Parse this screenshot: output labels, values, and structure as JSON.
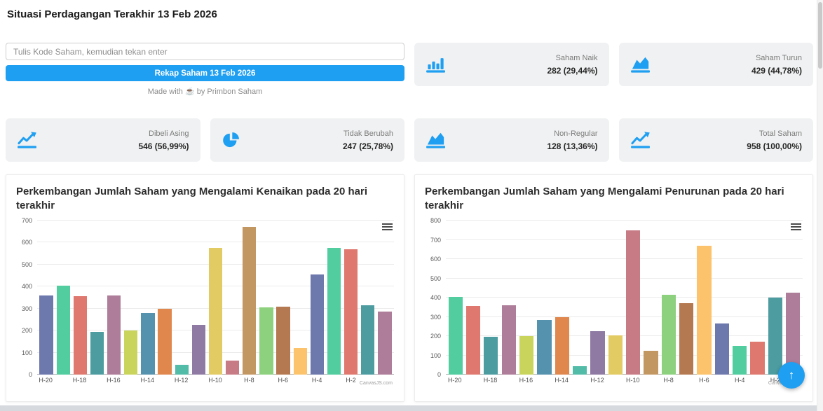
{
  "page": {
    "title": "Situasi Perdagangan Terakhir 13 Feb 2026"
  },
  "search": {
    "placeholder": "Tulis Kode Saham, kemudian tekan enter"
  },
  "actions": {
    "rekap_button": "Rekap Saham 13 Feb 2026"
  },
  "credit": {
    "prefix": "Made with",
    "emoji": "☕",
    "suffix": "by Primbon Saham"
  },
  "stats": [
    {
      "icon": "bar-chart",
      "label": "Saham Naik",
      "value": "282 (29,44%)"
    },
    {
      "icon": "area-chart",
      "label": "Saham Turun",
      "value": "429 (44,78%)"
    },
    {
      "icon": "line-chart",
      "label": "Dibeli Asing",
      "value": "546 (56,99%)"
    },
    {
      "icon": "pie-chart",
      "label": "Tidak Berubah",
      "value": "247 (25,78%)"
    },
    {
      "icon": "area-chart",
      "label": "Non-Regular",
      "value": "128 (13,36%)"
    },
    {
      "icon": "line-chart",
      "label": "Total Saham",
      "value": "958 (100,00%)"
    }
  ],
  "chart_data": [
    {
      "type": "bar",
      "title": "Perkembangan Jumlah Saham yang Mengalami Kenaikan pada 20 hari terakhir",
      "x_tick_labels": [
        "H-20",
        "H-18",
        "H-16",
        "H-14",
        "H-12",
        "H-10",
        "H-8",
        "H-6",
        "H-4",
        "H-2"
      ],
      "values": [
        360,
        405,
        355,
        195,
        360,
        200,
        280,
        300,
        45,
        225,
        575,
        65,
        670,
        305,
        310,
        120,
        455,
        575,
        570,
        315,
        285
      ],
      "ylim": [
        0,
        700
      ],
      "y_ticks": [
        0,
        100,
        200,
        300,
        400,
        500,
        600,
        700
      ],
      "grid": true,
      "legend": "none",
      "color_offset": 0,
      "watermark": "CanvasJS.com"
    },
    {
      "type": "bar",
      "title": "Perkembangan Jumlah Saham yang Mengalami Penurunan pada 20 hari terakhir",
      "x_tick_labels": [
        "H-20",
        "H-18",
        "H-16",
        "H-14",
        "H-12",
        "H-10",
        "H-8",
        "H-6",
        "H-4",
        "H-2"
      ],
      "values": [
        405,
        355,
        195,
        360,
        200,
        285,
        300,
        45,
        225,
        205,
        750,
        125,
        415,
        370,
        670,
        265,
        150,
        170,
        400,
        425
      ],
      "ylim": [
        0,
        800
      ],
      "y_ticks": [
        0,
        100,
        200,
        300,
        400,
        500,
        600,
        700,
        800
      ],
      "grid": true,
      "legend": "none",
      "color_offset": 1,
      "watermark": "CanvasJS.com"
    }
  ],
  "colors": {
    "accent": "#1E9FF2",
    "palette": [
      "#6D78AD",
      "#51CDA0",
      "#DF7970",
      "#4C9CA0",
      "#AE7D99",
      "#C9D45C",
      "#5592AD",
      "#DF874D",
      "#52BCA8",
      "#8E7AA3",
      "#E3CB64",
      "#C77B85",
      "#C39762",
      "#8DD17E",
      "#B57952",
      "#FCC26C"
    ]
  },
  "fab": {
    "label": "↑"
  }
}
